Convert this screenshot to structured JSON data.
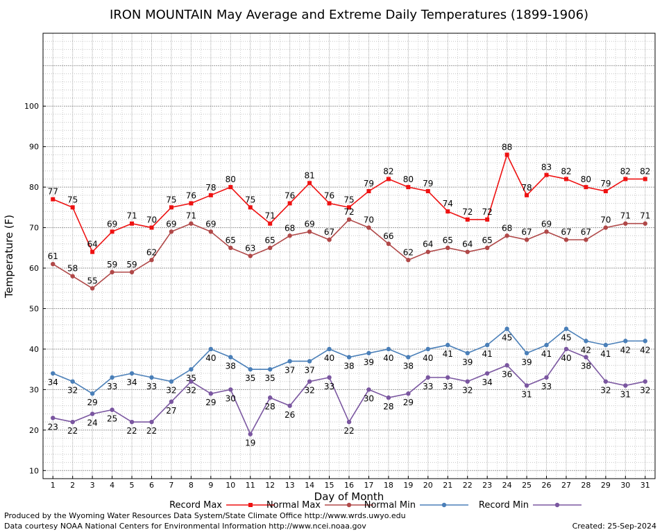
{
  "chart_data": {
    "type": "line",
    "title": "IRON MOUNTAIN May Average and Extreme Daily Temperatures (1899-1906)",
    "xlabel": "Day of Month",
    "ylabel": "Temperature (F)",
    "ylim": [
      8,
      118
    ],
    "yticks": [
      10,
      20,
      30,
      40,
      50,
      60,
      70,
      80,
      90,
      100
    ],
    "x": [
      1,
      2,
      3,
      4,
      5,
      6,
      7,
      8,
      9,
      10,
      11,
      12,
      13,
      14,
      15,
      16,
      17,
      18,
      19,
      20,
      21,
      22,
      23,
      24,
      25,
      26,
      27,
      28,
      29,
      30,
      31
    ],
    "grid": true,
    "legend_position": "bottom",
    "series": [
      {
        "name": "Record Max",
        "color": "#ee1111",
        "marker": "square",
        "label_position": "above",
        "values": [
          77,
          75,
          64,
          69,
          71,
          70,
          75,
          76,
          78,
          80,
          75,
          71,
          76,
          81,
          76,
          75,
          79,
          82,
          80,
          79,
          74,
          72,
          72,
          88,
          78,
          83,
          82,
          80,
          79,
          82,
          82
        ]
      },
      {
        "name": "Normal Max",
        "color": "#b04848",
        "marker": "circle",
        "label_position": "above",
        "values": [
          61,
          58,
          55,
          59,
          59,
          62,
          69,
          71,
          69,
          65,
          63,
          65,
          68,
          69,
          67,
          72,
          70,
          66,
          62,
          64,
          65,
          64,
          65,
          68,
          67,
          69,
          67,
          67,
          70,
          71,
          71
        ]
      },
      {
        "name": "Normal Min",
        "color": "#4a7fb8",
        "marker": "circle",
        "label_position": "below",
        "values": [
          34,
          32,
          29,
          33,
          34,
          33,
          32,
          35,
          40,
          38,
          35,
          35,
          37,
          37,
          40,
          38,
          39,
          40,
          38,
          40,
          41,
          39,
          41,
          45,
          39,
          41,
          45,
          42,
          41,
          42,
          42
        ]
      },
      {
        "name": "Record Min",
        "color": "#7a56a0",
        "marker": "circle",
        "label_position": "below",
        "values": [
          23,
          22,
          24,
          25,
          22,
          22,
          27,
          32,
          29,
          30,
          19,
          28,
          26,
          32,
          33,
          22,
          30,
          28,
          29,
          33,
          33,
          32,
          34,
          36,
          31,
          33,
          40,
          38,
          32,
          31,
          32
        ]
      }
    ]
  },
  "footer": {
    "produced_by": "Produced by the Wyoming Water Resources Data System/State Climate Office http://www.wrds.uwyo.edu",
    "courtesy": "Data courtesy NOAA National Centers for Environmental Information http://www.ncei.noaa.gov",
    "created": "Created:  25-Sep-2024"
  }
}
